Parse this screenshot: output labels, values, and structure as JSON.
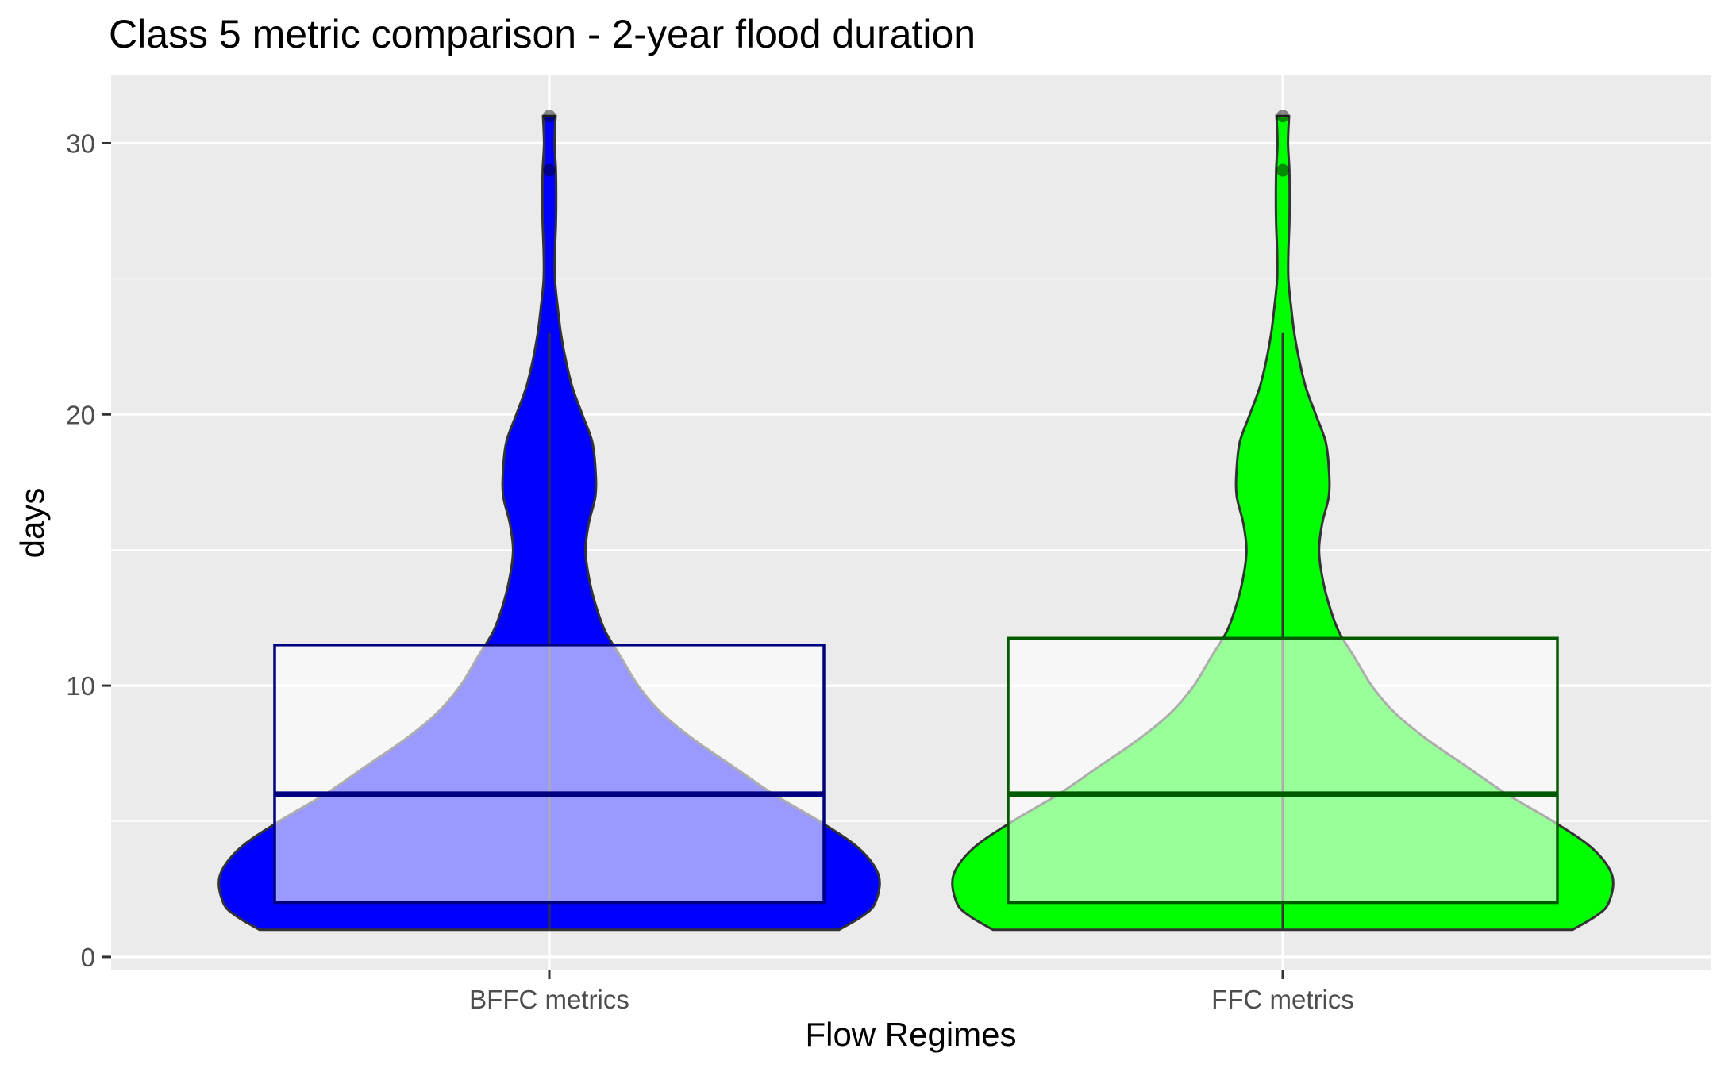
{
  "chart_data": {
    "type": "violin",
    "title": "Class 5 metric comparison - 2-year flood duration",
    "xlabel": "Flow Regimes",
    "ylabel": "days",
    "categories": [
      "BFFC metrics",
      "FFC metrics"
    ],
    "ylim": [
      -0.5,
      32.5
    ],
    "yticks": [
      0,
      10,
      20,
      30
    ],
    "grid": true,
    "legend": "none",
    "series": [
      {
        "category": "BFFC metrics",
        "fill_color": "#0000ff",
        "box_color": "#000080",
        "box": {
          "whisker_low": 1,
          "q1": 2,
          "median": 6,
          "q3": 11.5,
          "whisker_high": 23
        },
        "outliers": [
          29,
          31
        ],
        "density": [
          [
            1,
            0.88
          ],
          [
            1.5,
            0.95
          ],
          [
            2,
            0.99
          ],
          [
            3,
            1.0
          ],
          [
            4,
            0.94
          ],
          [
            5,
            0.82
          ],
          [
            6,
            0.68
          ],
          [
            7,
            0.56
          ],
          [
            8,
            0.44
          ],
          [
            9,
            0.34
          ],
          [
            10,
            0.27
          ],
          [
            11,
            0.22
          ],
          [
            12,
            0.17
          ],
          [
            13,
            0.14
          ],
          [
            14,
            0.12
          ],
          [
            15,
            0.11
          ],
          [
            16,
            0.12
          ],
          [
            17,
            0.14
          ],
          [
            18,
            0.14
          ],
          [
            19,
            0.13
          ],
          [
            20,
            0.1
          ],
          [
            21,
            0.07
          ],
          [
            22,
            0.05
          ],
          [
            23,
            0.035
          ],
          [
            24,
            0.025
          ],
          [
            25,
            0.017
          ],
          [
            26,
            0.017
          ],
          [
            27,
            0.02
          ],
          [
            28,
            0.021
          ],
          [
            29,
            0.02
          ],
          [
            30,
            0.016
          ],
          [
            31,
            0.019
          ]
        ]
      },
      {
        "category": "FFC metrics",
        "fill_color": "#00ff00",
        "box_color": "#005a00",
        "box": {
          "whisker_low": 1,
          "q1": 2,
          "median": 6,
          "q3": 11.75,
          "whisker_high": 23
        },
        "outliers": [
          29,
          31
        ],
        "density": [
          [
            1,
            0.88
          ],
          [
            1.5,
            0.95
          ],
          [
            2,
            0.99
          ],
          [
            3,
            1.0
          ],
          [
            4,
            0.94
          ],
          [
            5,
            0.82
          ],
          [
            6,
            0.68
          ],
          [
            7,
            0.56
          ],
          [
            8,
            0.44
          ],
          [
            9,
            0.34
          ],
          [
            10,
            0.27
          ],
          [
            11,
            0.22
          ],
          [
            12,
            0.17
          ],
          [
            13,
            0.14
          ],
          [
            14,
            0.12
          ],
          [
            15,
            0.11
          ],
          [
            16,
            0.12
          ],
          [
            17,
            0.14
          ],
          [
            18,
            0.14
          ],
          [
            19,
            0.13
          ],
          [
            20,
            0.1
          ],
          [
            21,
            0.07
          ],
          [
            22,
            0.05
          ],
          [
            23,
            0.035
          ],
          [
            24,
            0.025
          ],
          [
            25,
            0.017
          ],
          [
            26,
            0.017
          ],
          [
            27,
            0.02
          ],
          [
            28,
            0.021
          ],
          [
            29,
            0.02
          ],
          [
            30,
            0.016
          ],
          [
            31,
            0.019
          ]
        ]
      }
    ]
  }
}
